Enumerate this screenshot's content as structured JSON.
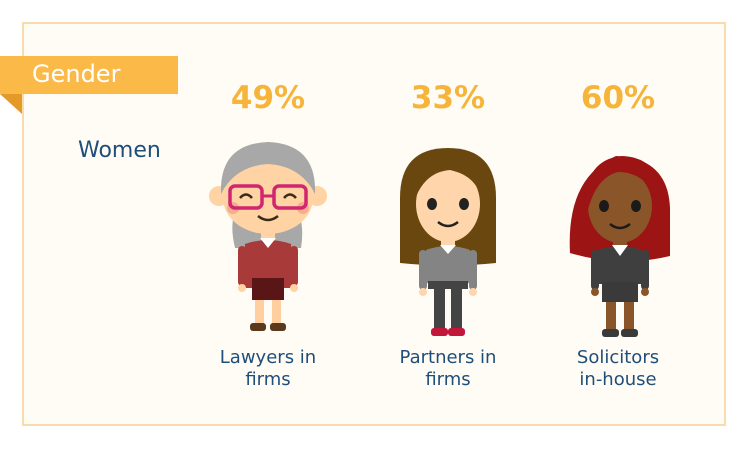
{
  "section": {
    "title": "Gender"
  },
  "row_label": "Women",
  "groups": [
    {
      "percent": "49%",
      "caption_line1": "Lawyers in",
      "caption_line2": "firms",
      "hair_color": "#a8a8a8",
      "skin_color": "#ffd3a3",
      "top_color": "#a83a3a",
      "has_glasses": true
    },
    {
      "percent": "33%",
      "caption_line1": "Partners in",
      "caption_line2": "firms",
      "hair_color": "#6b4710",
      "skin_color": "#ffd6ab",
      "top_color": "#848484"
    },
    {
      "percent": "60%",
      "caption_line1": "Solicitors",
      "caption_line2": "in-house",
      "hair_color": "#9c1414",
      "skin_color": "#8a5529",
      "top_color": "#3f3f3f"
    }
  ]
}
